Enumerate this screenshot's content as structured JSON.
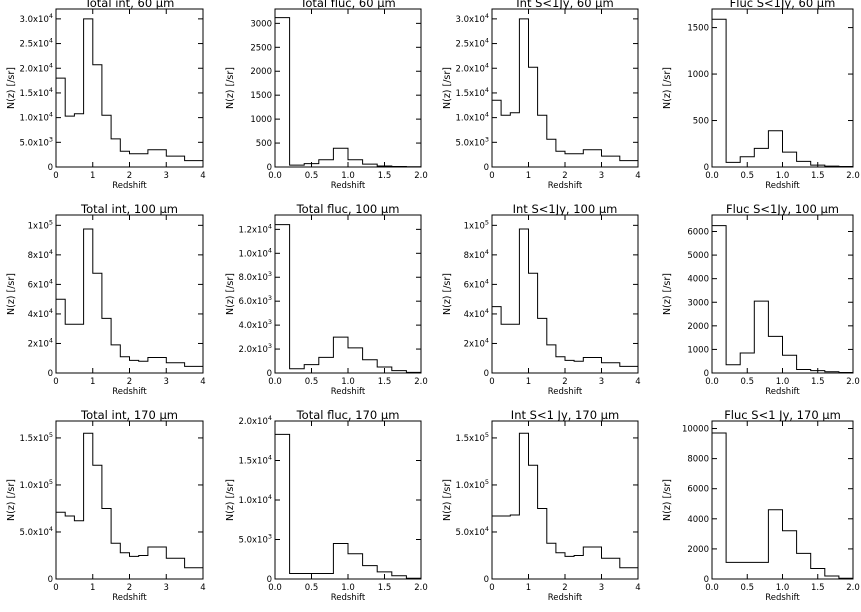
{
  "chart_data": [
    {
      "type": "histogram",
      "title": "Total int, 60 μm",
      "xlabel": "Redshift",
      "ylabel": "N(z) [/sr]",
      "xlim": [
        0,
        4
      ],
      "ylim": [
        0,
        32000
      ],
      "xticks": [
        0,
        1,
        2,
        3,
        4
      ],
      "xtick_labels": [
        "0",
        "1",
        "2",
        "3",
        "4"
      ],
      "yticks": [
        0,
        5000,
        10000,
        15000,
        20000,
        25000,
        30000
      ],
      "ytick_labels": [
        {
          "m": "0",
          "e": ""
        },
        {
          "m": "5.0x10",
          "e": "3"
        },
        {
          "m": "1.0x10",
          "e": "4"
        },
        {
          "m": "1.5x10",
          "e": "4"
        },
        {
          "m": "2.0x10",
          "e": "4"
        },
        {
          "m": "2.5x10",
          "e": "4"
        },
        {
          "m": "3.0x10",
          "e": "4"
        }
      ],
      "bin_edges": [
        0,
        0.25,
        0.5,
        0.75,
        1.0,
        1.25,
        1.5,
        1.75,
        2.0,
        2.25,
        2.5,
        3.0,
        3.5,
        4.0
      ],
      "values": [
        18000,
        10300,
        10800,
        30000,
        20700,
        10500,
        5700,
        3200,
        2700,
        2700,
        3500,
        2200,
        1300
      ]
    },
    {
      "type": "histogram",
      "title": "Total fluc, 60 μm",
      "xlabel": "Redshift",
      "ylabel": "N(z) [/sr]",
      "xlim": [
        0,
        2
      ],
      "ylim": [
        0,
        3300
      ],
      "xticks": [
        0,
        0.5,
        1,
        1.5,
        2
      ],
      "xtick_labels": [
        "0.0",
        "0.5",
        "1.0",
        "1.5",
        "2.0"
      ],
      "yticks": [
        0,
        500,
        1000,
        1500,
        2000,
        2500,
        3000
      ],
      "ytick_labels": [
        {
          "m": "0",
          "e": ""
        },
        {
          "m": "500",
          "e": ""
        },
        {
          "m": "1000",
          "e": ""
        },
        {
          "m": "1500",
          "e": ""
        },
        {
          "m": "2000",
          "e": ""
        },
        {
          "m": "2500",
          "e": ""
        },
        {
          "m": "3000",
          "e": ""
        }
      ],
      "bin_edges": [
        0,
        0.2,
        0.4,
        0.6,
        0.8,
        1.0,
        1.2,
        1.4,
        1.6,
        1.8,
        2.0
      ],
      "values": [
        3120,
        40,
        70,
        150,
        390,
        150,
        60,
        20,
        10,
        5
      ]
    },
    {
      "type": "histogram",
      "title": "Int S<1Jy, 60 μm",
      "xlabel": "Redshift",
      "ylabel": "N(z) [/sr]",
      "xlim": [
        0,
        4
      ],
      "ylim": [
        0,
        32000
      ],
      "xticks": [
        0,
        1,
        2,
        3,
        4
      ],
      "xtick_labels": [
        "0",
        "1",
        "2",
        "3",
        "4"
      ],
      "yticks": [
        0,
        5000,
        10000,
        15000,
        20000,
        25000,
        30000
      ],
      "ytick_labels": [
        {
          "m": "0",
          "e": ""
        },
        {
          "m": "5.0x10",
          "e": "3"
        },
        {
          "m": "1.0x10",
          "e": "4"
        },
        {
          "m": "1.5x10",
          "e": "4"
        },
        {
          "m": "2.0x10",
          "e": "4"
        },
        {
          "m": "2.5x10",
          "e": "4"
        },
        {
          "m": "3.0x10",
          "e": "4"
        }
      ],
      "bin_edges": [
        0,
        0.25,
        0.5,
        0.75,
        1.0,
        1.25,
        1.5,
        1.75,
        2.0,
        2.25,
        2.5,
        3.0,
        3.5,
        4.0
      ],
      "values": [
        13500,
        10500,
        11000,
        30000,
        20200,
        10500,
        5600,
        3200,
        2700,
        2700,
        3500,
        2200,
        1300
      ]
    },
    {
      "type": "histogram",
      "title": "Fluc S<1Jy, 60 μm",
      "xlabel": "Redshift",
      "ylabel": "N(z) [/sr]",
      "xlim": [
        0,
        2
      ],
      "ylim": [
        0,
        1700
      ],
      "xticks": [
        0,
        0.5,
        1,
        1.5,
        2
      ],
      "xtick_labels": [
        "0.0",
        "0.5",
        "1.0",
        "1.5",
        "2.0"
      ],
      "yticks": [
        0,
        500,
        1000,
        1500
      ],
      "ytick_labels": [
        {
          "m": "0",
          "e": ""
        },
        {
          "m": "500",
          "e": ""
        },
        {
          "m": "1000",
          "e": ""
        },
        {
          "m": "1500",
          "e": ""
        }
      ],
      "bin_edges": [
        0,
        0.2,
        0.4,
        0.6,
        0.8,
        1.0,
        1.2,
        1.4,
        1.6,
        1.8,
        2.0
      ],
      "values": [
        1590,
        50,
        110,
        200,
        390,
        160,
        60,
        20,
        10,
        5
      ]
    },
    {
      "type": "histogram",
      "title": "Total int, 100 μm",
      "xlabel": "Redshift",
      "ylabel": "N(z) [/sr]",
      "xlim": [
        0,
        4
      ],
      "ylim": [
        0,
        107000
      ],
      "xticks": [
        0,
        1,
        2,
        3,
        4
      ],
      "xtick_labels": [
        "0",
        "1",
        "2",
        "3",
        "4"
      ],
      "yticks": [
        0,
        20000,
        40000,
        60000,
        80000,
        100000
      ],
      "ytick_labels": [
        {
          "m": "0",
          "e": ""
        },
        {
          "m": "2x10",
          "e": "4"
        },
        {
          "m": "4x10",
          "e": "4"
        },
        {
          "m": "6x10",
          "e": "4"
        },
        {
          "m": "8x10",
          "e": "4"
        },
        {
          "m": "1x10",
          "e": "5"
        }
      ],
      "bin_edges": [
        0,
        0.25,
        0.75,
        1.0,
        1.25,
        1.5,
        1.75,
        2.0,
        2.25,
        2.5,
        3.0,
        3.5,
        4.0
      ],
      "values": [
        50000,
        33000,
        97500,
        67500,
        37000,
        19000,
        11000,
        8500,
        8000,
        10500,
        7000,
        4500
      ]
    },
    {
      "type": "histogram",
      "title": "Total fluc, 100 μm",
      "xlabel": "Redshift",
      "ylabel": "N(z) [/sr]",
      "xlim": [
        0,
        2
      ],
      "ylim": [
        0,
        13200
      ],
      "xticks": [
        0,
        0.5,
        1,
        1.5,
        2
      ],
      "xtick_labels": [
        "0.0",
        "0.5",
        "1.0",
        "1.5",
        "2.0"
      ],
      "yticks": [
        0,
        2000,
        4000,
        6000,
        8000,
        10000,
        12000
      ],
      "ytick_labels": [
        {
          "m": "0",
          "e": ""
        },
        {
          "m": "2.0x10",
          "e": "3"
        },
        {
          "m": "4.0x10",
          "e": "3"
        },
        {
          "m": "6.0x10",
          "e": "3"
        },
        {
          "m": "8.0x10",
          "e": "3"
        },
        {
          "m": "1.0x10",
          "e": "4"
        },
        {
          "m": "1.2x10",
          "e": "4"
        }
      ],
      "bin_edges": [
        0,
        0.2,
        0.4,
        0.6,
        0.8,
        1.0,
        1.2,
        1.4,
        1.6,
        1.8,
        2.0
      ],
      "values": [
        12400,
        350,
        700,
        1300,
        3000,
        2100,
        1100,
        500,
        200,
        50
      ]
    },
    {
      "type": "histogram",
      "title": "Int S<1Jy, 100 μm",
      "xlabel": "Redshift",
      "ylabel": "N(z) [/sr]",
      "xlim": [
        0,
        4
      ],
      "ylim": [
        0,
        107000
      ],
      "xticks": [
        0,
        1,
        2,
        3,
        4
      ],
      "xtick_labels": [
        "0",
        "1",
        "2",
        "3",
        "4"
      ],
      "yticks": [
        0,
        20000,
        40000,
        60000,
        80000,
        100000
      ],
      "ytick_labels": [
        {
          "m": "0",
          "e": ""
        },
        {
          "m": "2x10",
          "e": "4"
        },
        {
          "m": "4x10",
          "e": "4"
        },
        {
          "m": "6x10",
          "e": "4"
        },
        {
          "m": "8x10",
          "e": "4"
        },
        {
          "m": "1x10",
          "e": "5"
        }
      ],
      "bin_edges": [
        0,
        0.25,
        0.75,
        1.0,
        1.25,
        1.5,
        1.75,
        2.0,
        2.25,
        2.5,
        3.0,
        3.5,
        4.0
      ],
      "values": [
        45000,
        33000,
        97500,
        67500,
        37000,
        19000,
        11000,
        8500,
        8000,
        10500,
        7000,
        4500
      ]
    },
    {
      "type": "histogram",
      "title": "Fluc S<1Jy, 100 μm",
      "xlabel": "Redshift",
      "ylabel": "N(z) [/sr]",
      "xlim": [
        0,
        2
      ],
      "ylim": [
        0,
        6700
      ],
      "xticks": [
        0,
        0.5,
        1,
        1.5,
        2
      ],
      "xtick_labels": [
        "0.0",
        "0.5",
        "1.0",
        "1.5",
        "2.0"
      ],
      "yticks": [
        0,
        1000,
        2000,
        3000,
        4000,
        5000,
        6000
      ],
      "ytick_labels": [
        {
          "m": "0",
          "e": ""
        },
        {
          "m": "1000",
          "e": ""
        },
        {
          "m": "2000",
          "e": ""
        },
        {
          "m": "3000",
          "e": ""
        },
        {
          "m": "4000",
          "e": ""
        },
        {
          "m": "5000",
          "e": ""
        },
        {
          "m": "6000",
          "e": ""
        }
      ],
      "bin_edges": [
        0,
        0.2,
        0.4,
        0.6,
        0.8,
        1.0,
        1.2,
        1.4,
        1.6,
        1.8,
        2.0
      ],
      "values": [
        6250,
        350,
        850,
        3050,
        1550,
        750,
        150,
        100,
        50,
        20
      ]
    },
    {
      "type": "histogram",
      "title": "Total int, 170 μm",
      "xlabel": "Redshift",
      "ylabel": "N(z) [/sr]",
      "xlim": [
        0,
        4
      ],
      "ylim": [
        0,
        168000
      ],
      "xticks": [
        0,
        1,
        2,
        3,
        4
      ],
      "xtick_labels": [
        "0",
        "1",
        "2",
        "3",
        "4"
      ],
      "yticks": [
        0,
        50000,
        100000,
        150000
      ],
      "ytick_labels": [
        {
          "m": "0",
          "e": ""
        },
        {
          "m": "5.0x10",
          "e": "4"
        },
        {
          "m": "1.0x10",
          "e": "5"
        },
        {
          "m": "1.5x10",
          "e": "5"
        }
      ],
      "bin_edges": [
        0,
        0.25,
        0.5,
        0.75,
        1.0,
        1.25,
        1.5,
        1.75,
        2.0,
        2.25,
        2.5,
        3.0,
        3.5,
        4.0
      ],
      "values": [
        71000,
        67000,
        62000,
        155000,
        121000,
        75000,
        38000,
        28000,
        24000,
        25000,
        34000,
        22000,
        12000
      ]
    },
    {
      "type": "histogram",
      "title": "Total fluc, 170 μm",
      "xlabel": "Redshift",
      "ylabel": "N(z) [/sr]",
      "xlim": [
        0,
        2
      ],
      "ylim": [
        0,
        20000
      ],
      "xticks": [
        0,
        0.5,
        1,
        1.5,
        2
      ],
      "xtick_labels": [
        "0.0",
        "0.5",
        "1.0",
        "1.5",
        "2.0"
      ],
      "yticks": [
        0,
        5000,
        10000,
        15000,
        20000
      ],
      "ytick_labels": [
        {
          "m": "0",
          "e": ""
        },
        {
          "m": "5.0x10",
          "e": "3"
        },
        {
          "m": "1.0x10",
          "e": "4"
        },
        {
          "m": "1.5x10",
          "e": "4"
        },
        {
          "m": "2.0x10",
          "e": "4"
        }
      ],
      "bin_edges": [
        0,
        0.2,
        0.4,
        0.6,
        0.8,
        1.0,
        1.2,
        1.4,
        1.6,
        1.8,
        2.0
      ],
      "values": [
        18300,
        700,
        700,
        700,
        4500,
        3200,
        1700,
        900,
        400,
        100
      ]
    },
    {
      "type": "histogram",
      "title": "Int S<1 Jy, 170 μm",
      "xlabel": "Redshift",
      "ylabel": "N(z) [/sr]",
      "xlim": [
        0,
        4
      ],
      "ylim": [
        0,
        168000
      ],
      "xticks": [
        0,
        1,
        2,
        3,
        4
      ],
      "xtick_labels": [
        "0",
        "1",
        "2",
        "3",
        "4"
      ],
      "yticks": [
        0,
        50000,
        100000,
        150000
      ],
      "ytick_labels": [
        {
          "m": "0",
          "e": ""
        },
        {
          "m": "5.0x10",
          "e": "4"
        },
        {
          "m": "1.0x10",
          "e": "5"
        },
        {
          "m": "1.5x10",
          "e": "5"
        }
      ],
      "bin_edges": [
        0,
        0.25,
        0.5,
        0.75,
        1.0,
        1.25,
        1.5,
        1.75,
        2.0,
        2.25,
        2.5,
        3.0,
        3.5,
        4.0
      ],
      "values": [
        67000,
        67000,
        68000,
        155000,
        121000,
        75000,
        38000,
        28000,
        24000,
        25000,
        34000,
        22000,
        12000
      ]
    },
    {
      "type": "histogram",
      "title": "Fluc S<1 Jy, 170 μm",
      "xlabel": "Redshift",
      "ylabel": "N(z) [/sr]",
      "xlim": [
        0,
        2
      ],
      "ylim": [
        0,
        10500
      ],
      "xticks": [
        0,
        0.5,
        1,
        1.5,
        2
      ],
      "xtick_labels": [
        "0.0",
        "0.5",
        "1.0",
        "1.5",
        "2.0"
      ],
      "yticks": [
        0,
        2000,
        4000,
        6000,
        8000,
        10000
      ],
      "ytick_labels": [
        {
          "m": "0",
          "e": ""
        },
        {
          "m": "2000",
          "e": ""
        },
        {
          "m": "4000",
          "e": ""
        },
        {
          "m": "6000",
          "e": ""
        },
        {
          "m": "8000",
          "e": ""
        },
        {
          "m": "10000",
          "e": ""
        }
      ],
      "bin_edges": [
        0,
        0.2,
        0.4,
        0.6,
        0.8,
        1.0,
        1.2,
        1.4,
        1.6,
        1.8,
        2.0
      ],
      "values": [
        9700,
        1100,
        1100,
        1100,
        4600,
        3200,
        1700,
        700,
        200,
        50
      ]
    }
  ]
}
